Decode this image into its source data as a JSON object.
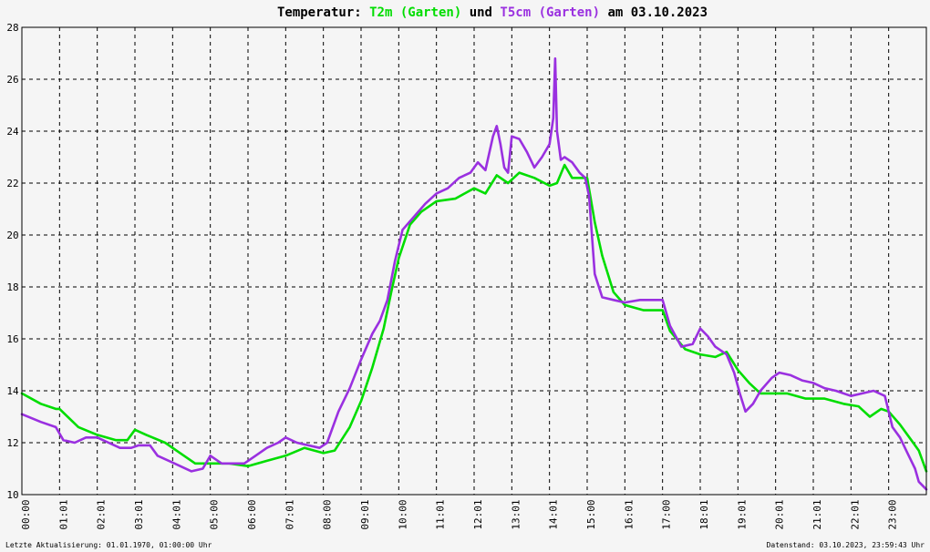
{
  "colors": {
    "background": "#f5f5f5",
    "grid": "#000000",
    "t2m": "#00dd00",
    "t5cm": "#9a30e0",
    "text": "#000000"
  },
  "title": {
    "prefix": "Temperatur:",
    "series1": "T2m (Garten)",
    "conj": "und",
    "series2": "T5cm (Garten)",
    "suffix": "am 03.10.2023"
  },
  "footer": {
    "left": "Letzte Aktualisierung: 01.01.1970, 01:00:00 Uhr",
    "right": "Datenstand: 03.10.2023, 23:59:43 Uhr"
  },
  "chart_data": {
    "type": "line",
    "ylim": [
      10,
      28
    ],
    "yticks": [
      10,
      12,
      14,
      16,
      18,
      20,
      22,
      24,
      26,
      28
    ],
    "xlim": [
      0,
      24
    ],
    "xticks": [
      "00:00",
      "01:01",
      "02:01",
      "03:01",
      "04:01",
      "05:00",
      "06:00",
      "07:01",
      "08:00",
      "09:01",
      "10:00",
      "11:01",
      "12:01",
      "13:01",
      "14:01",
      "15:00",
      "16:01",
      "17:00",
      "18:01",
      "19:01",
      "20:01",
      "21:01",
      "22:01",
      "23:00"
    ],
    "grid": true,
    "series": [
      {
        "name": "T2m (Garten)",
        "color": "#00dd00",
        "x": [
          0,
          0.5,
          0.9,
          1.0,
          1.5,
          2.0,
          2.5,
          2.8,
          3.0,
          3.3,
          3.8,
          4.2,
          4.6,
          5.0,
          5.5,
          6.0,
          6.5,
          7.0,
          7.5,
          8.0,
          8.3,
          8.7,
          9.0,
          9.3,
          9.6,
          9.8,
          10.0,
          10.3,
          10.6,
          11.0,
          11.5,
          12.0,
          12.3,
          12.6,
          12.9,
          13.2,
          13.6,
          14.0,
          14.2,
          14.4,
          14.6,
          14.8,
          15.0,
          15.2,
          15.4,
          15.7,
          16.0,
          16.5,
          17.0,
          17.2,
          17.6,
          18.0,
          18.4,
          18.7,
          19.0,
          19.3,
          19.6,
          19.9,
          20.3,
          20.8,
          21.3,
          21.8,
          22.2,
          22.5,
          22.8,
          23.0,
          23.3,
          23.6,
          23.8,
          24.0
        ],
        "y": [
          13.9,
          13.5,
          13.3,
          13.3,
          12.6,
          12.3,
          12.1,
          12.1,
          12.5,
          12.3,
          12.0,
          11.6,
          11.2,
          11.2,
          11.2,
          11.1,
          11.3,
          11.5,
          11.8,
          11.6,
          11.7,
          12.6,
          13.6,
          14.9,
          16.4,
          17.8,
          19.1,
          20.4,
          20.9,
          21.3,
          21.4,
          21.8,
          21.6,
          22.3,
          22.0,
          22.4,
          22.2,
          21.9,
          22.0,
          22.7,
          22.2,
          22.2,
          22.2,
          20.5,
          19.2,
          17.8,
          17.3,
          17.1,
          17.1,
          16.3,
          15.6,
          15.4,
          15.3,
          15.5,
          14.8,
          14.3,
          13.9,
          13.9,
          13.9,
          13.7,
          13.7,
          13.5,
          13.4,
          13.0,
          13.3,
          13.2,
          12.7,
          12.1,
          11.7,
          10.9
        ]
      },
      {
        "name": "T5cm (Garten)",
        "color": "#9a30e0",
        "x": [
          0,
          0.5,
          0.9,
          1.1,
          1.4,
          1.7,
          2.0,
          2.3,
          2.6,
          2.9,
          3.1,
          3.4,
          3.6,
          3.9,
          4.2,
          4.5,
          4.8,
          5.0,
          5.3,
          5.6,
          5.9,
          6.2,
          6.5,
          6.8,
          7.0,
          7.3,
          7.6,
          7.9,
          8.1,
          8.4,
          8.7,
          9.0,
          9.3,
          9.5,
          9.7,
          9.9,
          10.1,
          10.4,
          10.7,
          11.0,
          11.3,
          11.6,
          11.9,
          12.1,
          12.3,
          12.5,
          12.6,
          12.7,
          12.8,
          12.9,
          13.0,
          13.2,
          13.4,
          13.6,
          13.8,
          14.0,
          14.1,
          14.15,
          14.2,
          14.3,
          14.4,
          14.6,
          14.8,
          14.95,
          15.05,
          15.2,
          15.4,
          15.7,
          16.0,
          16.4,
          17.0,
          17.2,
          17.5,
          17.8,
          18.0,
          18.2,
          18.4,
          18.7,
          18.9,
          19.05,
          19.2,
          19.4,
          19.6,
          19.9,
          20.1,
          20.4,
          20.7,
          21.0,
          21.3,
          21.6,
          22.0,
          22.3,
          22.6,
          22.9,
          23.1,
          23.3,
          23.5,
          23.7,
          23.8,
          24.0
        ],
        "y": [
          13.1,
          12.8,
          12.6,
          12.1,
          12.0,
          12.2,
          12.2,
          12.0,
          11.8,
          11.8,
          11.9,
          11.9,
          11.5,
          11.3,
          11.1,
          10.9,
          11.0,
          11.5,
          11.2,
          11.2,
          11.2,
          11.5,
          11.8,
          12.0,
          12.2,
          12.0,
          11.9,
          11.8,
          12.0,
          13.2,
          14.1,
          15.2,
          16.2,
          16.7,
          17.5,
          19.0,
          20.2,
          20.7,
          21.2,
          21.6,
          21.8,
          22.2,
          22.4,
          22.8,
          22.5,
          23.8,
          24.2,
          23.5,
          22.6,
          22.4,
          23.8,
          23.7,
          23.2,
          22.6,
          23.0,
          23.5,
          24.5,
          26.8,
          24.0,
          22.9,
          23.0,
          22.8,
          22.4,
          22.2,
          21.5,
          18.5,
          17.6,
          17.5,
          17.4,
          17.5,
          17.5,
          16.5,
          15.7,
          15.8,
          16.4,
          16.1,
          15.7,
          15.4,
          14.7,
          13.9,
          13.2,
          13.5,
          14.0,
          14.5,
          14.7,
          14.6,
          14.4,
          14.3,
          14.1,
          14.0,
          13.8,
          13.9,
          14.0,
          13.8,
          12.6,
          12.2,
          11.6,
          11.0,
          10.5,
          10.2
        ]
      }
    ]
  }
}
